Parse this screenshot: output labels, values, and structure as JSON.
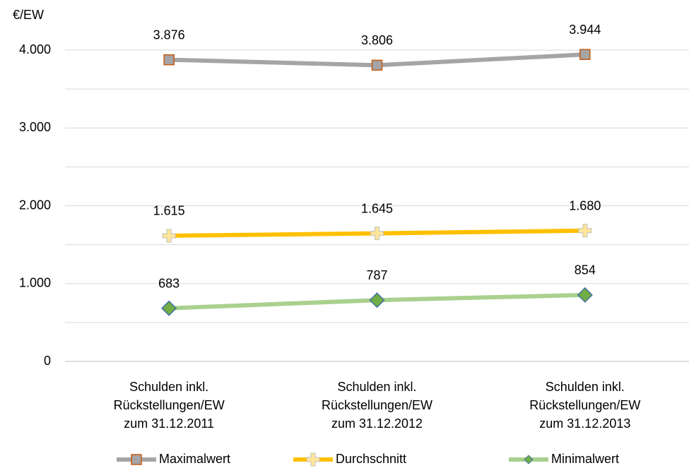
{
  "chart_data": {
    "type": "line",
    "y_unit": "€/EW",
    "categories": [
      [
        "Schulden inkl.",
        "Rückstellungen/EW",
        "zum 31.12.2011"
      ],
      [
        "Schulden inkl.",
        "Rückstellungen/EW",
        "zum 31.12.2012"
      ],
      [
        "Schulden inkl.",
        "Rückstellungen/EW",
        "zum 31.12.2013"
      ]
    ],
    "series": [
      {
        "name": "Maximalwert",
        "color": "#a5a5a5",
        "marker": "square",
        "marker_fill": "#a5a5a5",
        "marker_stroke": "#c55a11",
        "values": [
          3876,
          3806,
          3944
        ],
        "value_labels": [
          "3.876",
          "3.806",
          "3.944"
        ]
      },
      {
        "name": "Durchschnitt",
        "color": "#ffc000",
        "marker": "plus",
        "marker_fill": "#ffe699",
        "marker_stroke": "#bfbfbf",
        "values": [
          1615,
          1645,
          1680
        ],
        "value_labels": [
          "1.615",
          "1.645",
          "1.680"
        ]
      },
      {
        "name": "Minimalwert",
        "color": "#a9d18e",
        "marker": "diamond",
        "marker_fill": "#70ad47",
        "marker_stroke": "#41719c",
        "values": [
          683,
          787,
          854
        ],
        "value_labels": [
          "683",
          "787",
          "854"
        ]
      }
    ],
    "ylim": [
      0,
      4000
    ],
    "yticks": [
      0,
      {
        "value": 1000,
        "label": "1.000"
      },
      {
        "value": 2000,
        "label": "2.000"
      },
      {
        "value": 3000,
        "label": "3.000"
      },
      {
        "value": 4000,
        "label": "4.000"
      }
    ],
    "minor_yticks": [
      500,
      1500,
      2500,
      3500
    ],
    "grid": true,
    "legend": "bottom"
  }
}
